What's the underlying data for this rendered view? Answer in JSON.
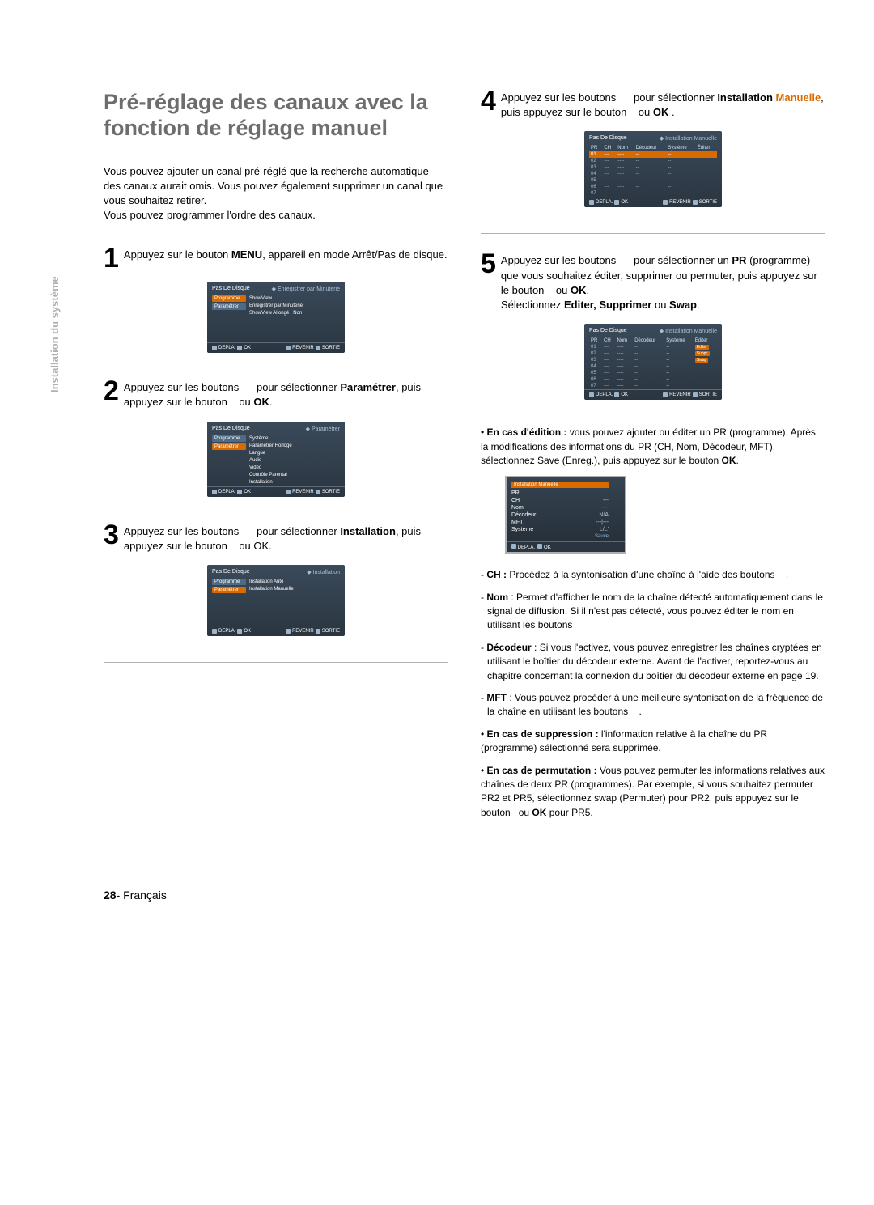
{
  "side_label": "Installation du système",
  "title": "Pré-réglage des canaux avec la fonction de réglage manuel",
  "intro": "Vous pouvez ajouter un canal pré-réglé que la recherche automatique des canaux aurait omis. Vous pouvez également supprimer un canal que vous souhaitez retirer.\nVous pouvez programmer l'ordre des canaux.",
  "steps": {
    "s1": {
      "num": "1",
      "text_before": "Appuyez sur le bouton ",
      "bold1": "MENU",
      "text_after": ", appareil en mode Arrêt/Pas de disque."
    },
    "s2": {
      "num": "2",
      "part1": "Appuyez sur les boutons",
      "part2": "pour sélectionner ",
      "bold": "Paramétrer",
      "part3": ", puis appuyez sur le bouton",
      "part4": "ou ",
      "bold2": "OK",
      "part5": "."
    },
    "s3": {
      "num": "3",
      "part1": "Appuyez sur les boutons",
      "part2": "pour sélectionner ",
      "bold": "Installation",
      "part3": ", puis appuyez sur le bouton",
      "part4": "ou OK."
    },
    "s4": {
      "num": "4",
      "part1": "Appuyez sur les boutons",
      "part2": "pour sélectionner ",
      "bold": "Installation ",
      "highlight": "Manuelle",
      "part3": ", puis appuyez sur le bouton",
      "part4": "ou ",
      "bold2": "OK",
      "part5": " ."
    },
    "s5": {
      "num": "5",
      "part1": "Appuyez sur les boutons",
      "part2": "pour sélectionner un ",
      "bold": "PR",
      "part3": " (programme) que vous souhaitez éditer, supprimer ou permuter, puis appuyez sur le bouton",
      "part4": "ou ",
      "bold2": "OK",
      "part5": ".",
      "line2a": "Sélectionnez ",
      "line2b": "Editer, Supprimer",
      "line2c": " ou ",
      "line2d": "Swap",
      "line2e": "."
    }
  },
  "screens": {
    "base_title": "Pas De Disque",
    "footer": {
      "depla": "DEPLA.",
      "ok": "OK",
      "revenir": "REVENIR",
      "sortie": "SORTIE"
    },
    "s1_crumb": "Enregistrer par Minuterie",
    "s1_tabs": [
      "Programme",
      "Paramétrer"
    ],
    "s1_items": [
      "ShowView",
      "Enregistrer par Minuterie",
      "ShowView Allongé : Non"
    ],
    "s2_crumb": "Paramétrer",
    "s2_items": [
      "Système",
      "Paramétrer Horloge",
      "Langue",
      "Audio",
      "Vidéo",
      "Contrôle Parental",
      "Installation"
    ],
    "s3_crumb": "Installation",
    "s3_items": [
      "Installation Auto",
      "Installation Manuelle"
    ],
    "s4_crumb": "Installation Manuelle",
    "table_headers": [
      "PR",
      "CH",
      "Nom",
      "Décodeur",
      "Système",
      "Éditer"
    ],
    "s4_rows": [
      [
        "01",
        "---",
        "----",
        "--",
        "--",
        ""
      ],
      [
        "02",
        "---",
        "----",
        "--",
        "--",
        ""
      ],
      [
        "03",
        "---",
        "----",
        "--",
        "--",
        ""
      ],
      [
        "04",
        "---",
        "----",
        "--",
        "--",
        ""
      ],
      [
        "05",
        "---",
        "----",
        "--",
        "--",
        ""
      ],
      [
        "06",
        "---",
        "----",
        "--",
        "--",
        ""
      ],
      [
        "07",
        "---",
        "----",
        "--",
        "--",
        ""
      ]
    ],
    "s5_rows": [
      [
        "01",
        "---",
        "----",
        "--",
        "--",
        "Editer"
      ],
      [
        "02",
        "---",
        "----",
        "--",
        "--",
        "Suppr."
      ],
      [
        "03",
        "---",
        "----",
        "--",
        "--",
        "Swap"
      ],
      [
        "04",
        "---",
        "----",
        "--",
        "--",
        ""
      ],
      [
        "05",
        "---",
        "----",
        "--",
        "--",
        ""
      ],
      [
        "06",
        "---",
        "----",
        "--",
        "--",
        ""
      ],
      [
        "07",
        "---",
        "----",
        "--",
        "--",
        ""
      ]
    ],
    "mini": {
      "header": "Installation Manuelle",
      "rows": [
        [
          "PR",
          ""
        ],
        [
          "CH",
          "---"
        ],
        [
          "Nom",
          "----"
        ],
        [
          "Décodeur",
          "N/A"
        ],
        [
          "MFT",
          "---|---"
        ],
        [
          "Système",
          "L/L'"
        ]
      ],
      "save": "Sauve",
      "footer": "DEPLA.   OK"
    }
  },
  "notes": {
    "edit_lead": "En cas d'édition :",
    "edit_body": " vous pouvez ajouter ou éditer un PR (programme). Après la modifications des informations du PR (CH, Nom, Décodeur, MFT), sélectionnez Save (Enreg.), puis appuyez sur le bouton ",
    "edit_bold": "OK",
    "edit_tail": ".",
    "ch_term": "CH :",
    "ch_body": " Procédez à la syntonisation d'une chaîne à l'aide des boutons",
    "ch_tail": ".",
    "nom_term": "Nom",
    "nom_body": " : Permet d'afficher le nom de la chaîne détecté automatiquement dans le signal de diffusion. Si il n'est pas détecté, vous pouvez éditer le nom en utilisant les boutons",
    "dec_term": "Décodeur",
    "dec_body": " : Si vous l'activez, vous pouvez enregistrer les chaînes cryptées en utilisant le boîtier du décodeur externe. Avant de l'activer, reportez-vous au chapitre concernant la connexion du boîtier du décodeur externe en page 19.",
    "mft_term": "MFT",
    "mft_body": " : Vous pouvez procéder à une meilleure syntonisation de la fréquence de la chaîne en utilisant les boutons",
    "mft_tail": ".",
    "del_lead": "En cas de suppression :",
    "del_body": " l'information relative à la chaîne du PR (programme) sélectionné sera supprimée.",
    "perm_lead": "En cas de permutation :",
    "perm_body": " Vous pouvez permuter les informations relatives aux chaînes de deux PR (programmes). Par exemple, si vous souhaitez permuter PR2 et PR5, sélectionnez swap (Permuter) pour PR2, puis appuyez sur le bouton",
    "perm_mid": "ou ",
    "perm_bold": "OK",
    "perm_tail": " pour PR5."
  },
  "footer": {
    "page": "28",
    "sep": "- ",
    "lang": "Français"
  }
}
